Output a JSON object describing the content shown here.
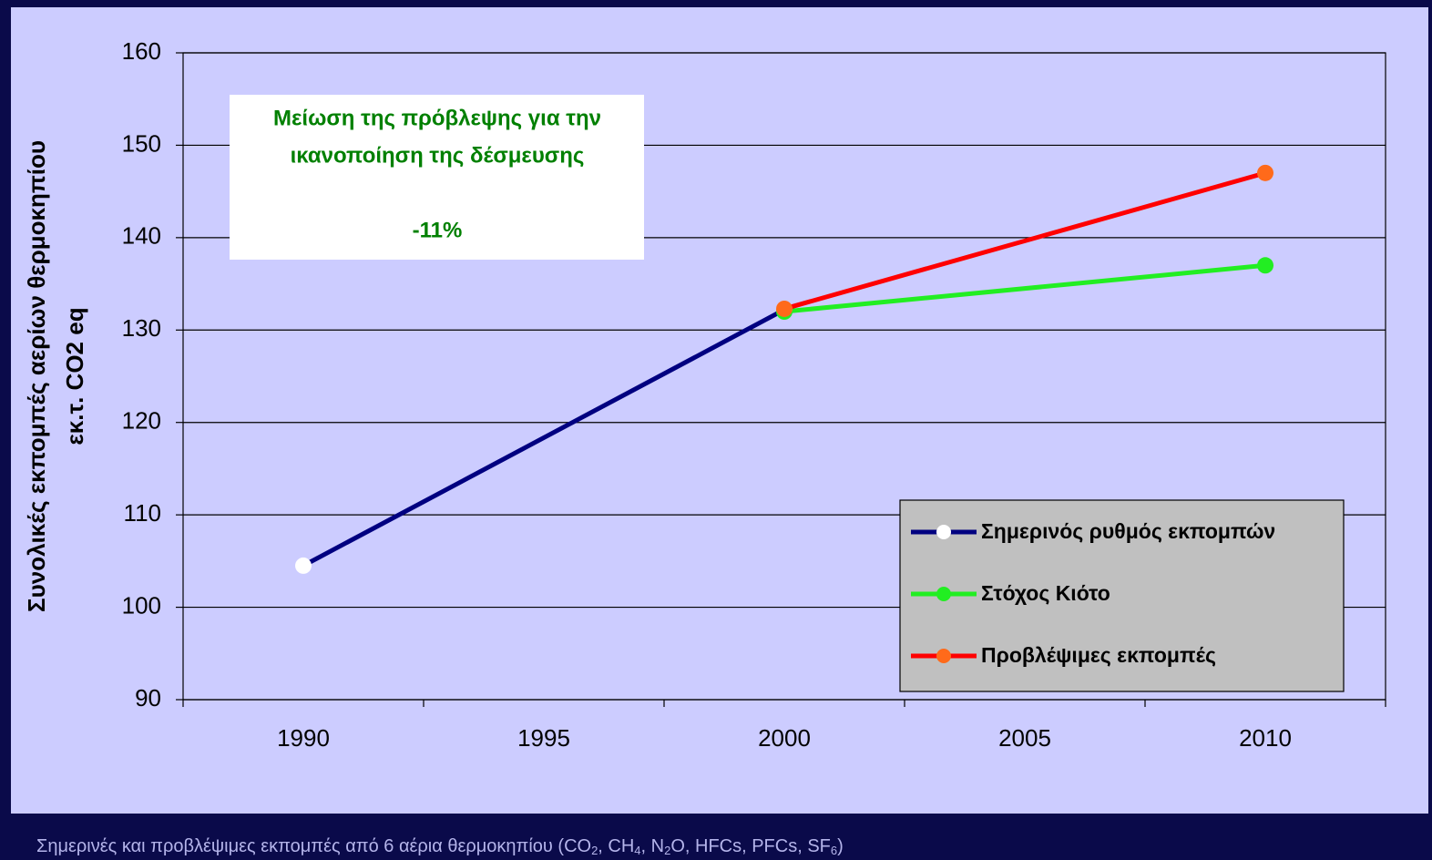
{
  "chart_data": {
    "type": "line",
    "y_label": [
      "Συνολικές εκπομπές αερίων θερμοκηπίου",
      "εκ.τ. CO2 eq"
    ],
    "annotation": [
      "Μείωση της πρόβλεψης για την",
      "ικανοποίηση της δέσμευσης",
      "-11%"
    ],
    "caption": [
      "Σημερινές και προβλέψιμες εκπομπές από 6 αέρια θερμοκηπίου (CO",
      "2",
      ", CH",
      "4",
      ", N",
      "2",
      "O, HFCs, PFCs, SF",
      "6",
      ")"
    ],
    "xlim": [
      1987.5,
      2012.5
    ],
    "xticks": [
      1990,
      1995,
      2000,
      2005,
      2010
    ],
    "ylim": [
      90,
      160
    ],
    "yticks": [
      90,
      100,
      110,
      120,
      130,
      140,
      150,
      160
    ],
    "grid": true,
    "series": [
      {
        "name": "Σημερινός ρυθμός εκπομπών",
        "color": "#000080",
        "marker_color": "#ffffff",
        "x": [
          1990,
          2000
        ],
        "values": [
          104.5,
          132.2
        ]
      },
      {
        "name": "Στόχος Κιότο",
        "color": "#22ee22",
        "marker_color": "#22ee22",
        "x": [
          2000,
          2010
        ],
        "values": [
          132,
          137
        ]
      },
      {
        "name": "Προβλέψιμες εκπομπές",
        "color": "#ff0000",
        "marker_color": "#ff6a1a",
        "x": [
          2000,
          2010
        ],
        "values": [
          132.3,
          147
        ]
      }
    ]
  }
}
